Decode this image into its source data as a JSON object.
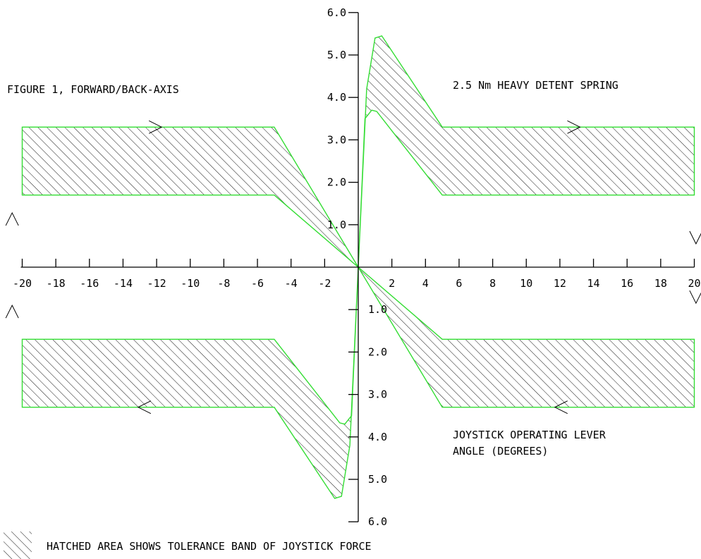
{
  "chart_data": {
    "type": "area",
    "title": "FIGURE 1, FORWARD/BACK-AXIS",
    "subtitle": "2.5 Nm HEAVY DETENT SPRING",
    "xlabel": "JOYSTICK OPERATING LEVER ANGLE (DEGREES)",
    "legend_text": "HATCHED AREA SHOWS TOLERANCE BAND OF JOYSTICK FORCE",
    "xlim": [
      -20,
      20
    ],
    "ylim": [
      -6,
      6
    ],
    "grid": false,
    "x_ticks": [
      "-20",
      "-18",
      "-16",
      "-14",
      "-12",
      "-10",
      "-8",
      "-6",
      "-4",
      "-2",
      "2",
      "4",
      "6",
      "8",
      "10",
      "12",
      "14",
      "16",
      "18",
      "20"
    ],
    "y_ticks_positive": [
      "1.0",
      "2.0",
      "3.0",
      "4.0",
      "5.0",
      "6.0"
    ],
    "y_ticks_negative": [
      "1.0",
      "2.0",
      "3.0",
      "4.0",
      "5.0",
      "6.0"
    ],
    "series": [
      {
        "band": "forward",
        "upper": [
          [
            -20,
            3.3
          ],
          [
            -5,
            3.3
          ],
          [
            0,
            0
          ],
          [
            0.5,
            4.2
          ],
          [
            1.0,
            5.4
          ],
          [
            1.4,
            5.45
          ],
          [
            5,
            3.3
          ],
          [
            20,
            3.3
          ]
        ],
        "lower": [
          [
            -20,
            1.7
          ],
          [
            -5,
            1.7
          ],
          [
            0,
            0
          ],
          [
            0.4,
            3.5
          ],
          [
            0.8,
            3.7
          ],
          [
            1.1,
            3.67
          ],
          [
            5,
            1.7
          ],
          [
            20,
            1.7
          ]
        ]
      },
      {
        "band": "back",
        "upper": [
          [
            -20,
            -1.7
          ],
          [
            -5,
            -1.7
          ],
          [
            -1.1,
            -3.67
          ],
          [
            -0.8,
            -3.7
          ],
          [
            -0.4,
            -3.5
          ],
          [
            0,
            0
          ],
          [
            5,
            -1.7
          ],
          [
            20,
            -1.7
          ]
        ],
        "lower": [
          [
            -20,
            -3.3
          ],
          [
            -5,
            -3.3
          ],
          [
            -1.4,
            -5.45
          ],
          [
            -1.0,
            -5.4
          ],
          [
            -0.5,
            -4.2
          ],
          [
            0,
            0
          ],
          [
            5,
            -3.3
          ],
          [
            20,
            -3.3
          ]
        ]
      }
    ]
  }
}
